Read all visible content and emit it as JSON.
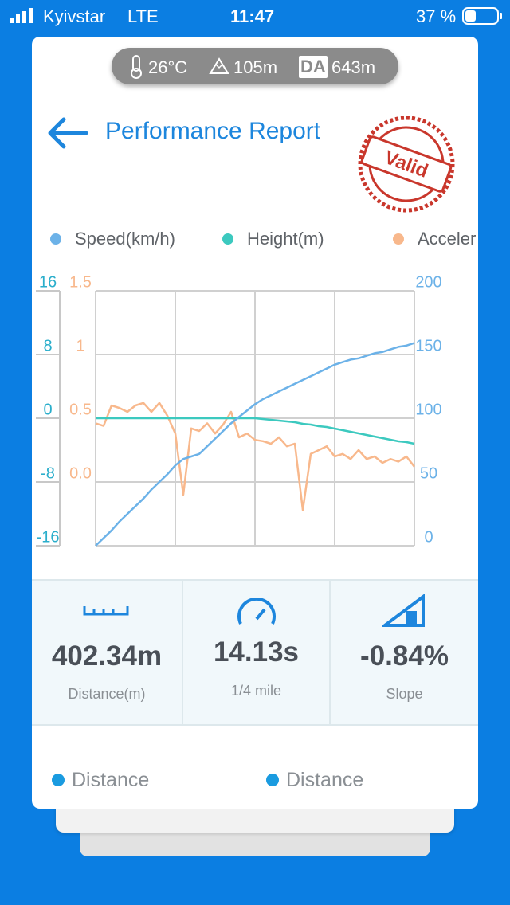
{
  "status_bar": {
    "carrier": "Kyivstar",
    "network": "LTE",
    "time": "11:47",
    "battery": "37 %"
  },
  "conditions": {
    "temperature": "26°C",
    "altitude": "105m",
    "da_label": "DA",
    "density_altitude": "643m"
  },
  "header": {
    "title": "Performance Report",
    "stamp": "Valid"
  },
  "chart_data": {
    "type": "line",
    "categories": [
      null,
      null,
      null,
      null,
      null,
      null,
      null,
      null,
      null,
      null,
      null,
      null,
      null,
      null,
      null,
      null,
      null,
      null,
      null,
      null,
      null,
      null,
      null,
      null,
      null,
      null,
      null,
      null,
      null,
      null,
      null,
      null,
      null,
      null,
      null,
      null,
      null,
      null,
      null,
      null,
      null
    ],
    "series": [
      {
        "name": "Speed(km/h)",
        "color": "#6cb2e8",
        "axis": "y2",
        "values": [
          0,
          6,
          12,
          19,
          25,
          31,
          37,
          44,
          50,
          56,
          63,
          68,
          70,
          72,
          78,
          84,
          90,
          96,
          101,
          106,
          111,
          115,
          118,
          121,
          124,
          127,
          130,
          133,
          136,
          139,
          142,
          144,
          146,
          147,
          149,
          151,
          152,
          154,
          156,
          157,
          159
        ]
      },
      {
        "name": "Height(m)",
        "color": "#3cc9bf",
        "axis": "y",
        "values": [
          0,
          0,
          0,
          0,
          0,
          0,
          0,
          0,
          0,
          0,
          0,
          0,
          0,
          0,
          0,
          0,
          0,
          0,
          0,
          0,
          0,
          -0.1,
          -0.2,
          -0.3,
          -0.4,
          -0.5,
          -0.7,
          -0.8,
          -1,
          -1.1,
          -1.3,
          -1.5,
          -1.7,
          -1.9,
          -2.1,
          -2.3,
          -2.5,
          -2.7,
          -2.9,
          -3,
          -3.2
        ]
      },
      {
        "name": "Acceler",
        "color": "#f8b88c",
        "axis": "y3",
        "values": [
          0.46,
          0.44,
          0.6,
          0.58,
          0.55,
          0.6,
          0.62,
          0.55,
          0.62,
          0.52,
          0.38,
          -0.1,
          0.42,
          0.4,
          0.46,
          0.38,
          0.45,
          0.55,
          0.35,
          0.38,
          0.33,
          0.32,
          0.3,
          0.35,
          0.28,
          0.3,
          -0.22,
          0.22,
          0.25,
          0.28,
          0.2,
          0.22,
          0.18,
          0.25,
          0.18,
          0.2,
          0.15,
          0.18,
          0.16,
          0.2,
          0.12
        ]
      }
    ],
    "ylim": [
      -16,
      16
    ],
    "yticks": [
      -16,
      -8,
      0,
      8,
      16
    ],
    "y2lim": [
      0,
      200
    ],
    "y2ticks": [
      0,
      50,
      100,
      150,
      200
    ],
    "y3lim": [
      -0.5,
      1.5
    ],
    "y3ticks": [
      {
        "value": 0,
        "label": "0.0"
      },
      0.5,
      1,
      1.5
    ],
    "grid": true
  },
  "stats": [
    {
      "value": "402.34m",
      "label": "Distance(m)"
    },
    {
      "value": "14.13s",
      "label": "1/4 mile"
    },
    {
      "value": "-0.84%",
      "label": "Slope"
    }
  ],
  "bottom_legend": [
    "Distance",
    "Distance"
  ]
}
